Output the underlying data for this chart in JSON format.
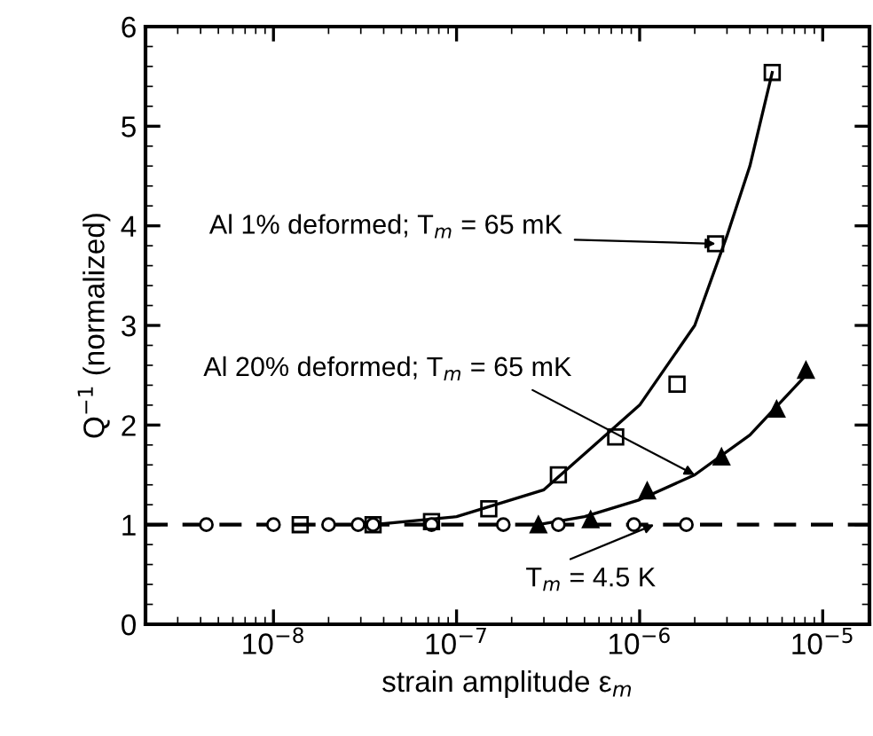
{
  "chart_data": {
    "type": "scatter",
    "xlabel": "strain amplitude ε$_{m}$",
    "ylabel": "Q$^{−1}$ (normalized)",
    "log": "x",
    "xlim": [
      2e-09,
      1.8e-05
    ],
    "ylim": [
      0,
      6
    ],
    "xticks": [
      {
        "value": 1e-08,
        "label": "10$^{−8}$"
      },
      {
        "value": 1e-07,
        "label": "10$^{−7}$"
      },
      {
        "value": 1e-06,
        "label": "10$^{−6}$"
      },
      {
        "value": 1e-05,
        "label": "10$^{−5}$"
      }
    ],
    "yticks": [
      0,
      1,
      2,
      3,
      4,
      5,
      6
    ],
    "grid": false,
    "legend": false,
    "series": [
      {
        "marker": "circle",
        "color": "#000000",
        "x": [
          4.3e-09,
          1e-08,
          2e-08,
          2.9e-08,
          3.5e-08,
          7.3e-08,
          1.8e-07,
          3.6e-07,
          9.3e-07,
          1.8e-06
        ],
        "values": [
          1,
          1,
          1,
          1,
          1,
          1,
          1,
          1,
          1,
          1
        ]
      },
      {
        "marker": "square",
        "color": "#000000",
        "x": [
          1.4e-08,
          3.5e-08,
          7.3e-08,
          1.5e-07,
          3.6e-07,
          7.4e-07,
          1.6e-06,
          2.6e-06,
          5.3e-06
        ],
        "values": [
          1.0,
          1.0,
          1.03,
          1.16,
          1.5,
          1.88,
          2.41,
          3.82,
          5.54
        ]
      },
      {
        "marker": "triangle",
        "color": "#000000",
        "x": [
          2.8e-07,
          5.4e-07,
          1.1e-06,
          2.8e-06,
          5.6e-06,
          8.1e-06
        ],
        "values": [
          1.0,
          1.05,
          1.34,
          1.68,
          2.16,
          2.55
        ]
      },
      {
        "type": "line",
        "marker": "none",
        "line_style": "solid",
        "color": "#000000",
        "x": [
          3.5e-08,
          1e-07,
          3e-07,
          1e-06,
          2e-06,
          3e-06,
          4e-06,
          5.3e-06
        ],
        "values": [
          1.0,
          1.08,
          1.35,
          2.2,
          3.0,
          3.9,
          4.6,
          5.54
        ]
      },
      {
        "type": "line",
        "marker": "none",
        "line_style": "solid",
        "color": "#000000",
        "x": [
          2.8e-07,
          5e-07,
          1e-06,
          2e-06,
          4e-06,
          8.1e-06
        ],
        "values": [
          1.0,
          1.08,
          1.25,
          1.5,
          1.9,
          2.5
        ]
      }
    ],
    "ref_lines": [
      {
        "axis": "y",
        "value": 1,
        "line_style": "dashed",
        "color": "#000000"
      }
    ],
    "annotations": [
      {
        "text": "Al 1% deformed; T$_{m}$ = 65 mK",
        "x": 2.6e-06,
        "y": 3.82
      },
      {
        "text": "Al 20% deformed; T$_{m}$ = 65 mK",
        "x": 2e-06,
        "y": 1.5
      },
      {
        "text": "T$_{m}$ = 4.5 K",
        "x": 1.2e-06,
        "y": 1
      }
    ]
  }
}
